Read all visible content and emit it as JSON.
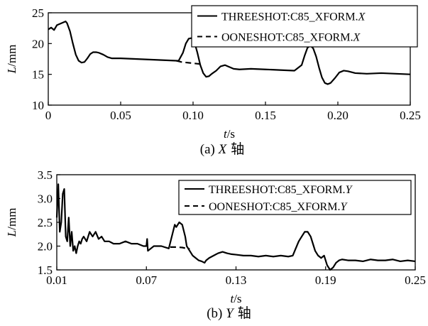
{
  "chart_data": [
    {
      "type": "line",
      "caption": "(a) X 轴",
      "caption_letter": "(a)",
      "caption_axis": "X",
      "caption_suffix": "轴",
      "xlabel": "t/s",
      "ylabel": "L/mm",
      "xlim": [
        0,
        0.25
      ],
      "ylim": [
        10,
        25
      ],
      "xticks": [
        0,
        0.05,
        0.1,
        0.15,
        0.2,
        0.25
      ],
      "xtick_labels": [
        "0",
        "0.05",
        "0.10",
        "0.15",
        "0.20",
        "0.25"
      ],
      "yticks": [
        10,
        15,
        20,
        25
      ],
      "ytick_labels": [
        "10",
        "15",
        "20",
        "25"
      ],
      "legend_position": "top-right",
      "series": [
        {
          "name": "THREESHOT:C85_XFORM.X",
          "name_prefix": "THREESHOT:C85_XFORM.",
          "name_axis": "X",
          "style": "solid",
          "x": [
            0,
            0.002,
            0.004,
            0.006,
            0.008,
            0.01,
            0.012,
            0.013,
            0.015,
            0.017,
            0.019,
            0.021,
            0.023,
            0.025,
            0.027,
            0.029,
            0.031,
            0.033,
            0.035,
            0.038,
            0.041,
            0.044,
            0.047,
            0.05,
            0.06,
            0.07,
            0.08,
            0.09,
            0.093,
            0.095,
            0.097,
            0.099,
            0.101,
            0.103,
            0.105,
            0.107,
            0.109,
            0.111,
            0.113,
            0.116,
            0.119,
            0.122,
            0.125,
            0.128,
            0.132,
            0.14,
            0.15,
            0.16,
            0.17,
            0.175,
            0.177,
            0.179,
            0.181,
            0.183,
            0.185,
            0.187,
            0.189,
            0.191,
            0.193,
            0.195,
            0.198,
            0.201,
            0.204,
            0.207,
            0.212,
            0.22,
            0.23,
            0.24,
            0.25
          ],
          "y": [
            22.3,
            22.6,
            22.2,
            23.0,
            23.2,
            23.4,
            23.6,
            23.3,
            22.0,
            20.0,
            18.2,
            17.2,
            16.9,
            17.0,
            17.6,
            18.3,
            18.6,
            18.6,
            18.5,
            18.2,
            17.8,
            17.6,
            17.6,
            17.6,
            17.5,
            17.4,
            17.3,
            17.2,
            18.5,
            20.0,
            20.8,
            20.9,
            20.2,
            18.5,
            16.5,
            15.2,
            14.6,
            14.7,
            15.1,
            15.6,
            16.3,
            16.5,
            16.2,
            15.9,
            15.8,
            15.9,
            15.8,
            15.7,
            15.6,
            16.5,
            18.0,
            19.3,
            19.7,
            19.2,
            17.9,
            16.1,
            14.5,
            13.6,
            13.4,
            13.6,
            14.4,
            15.3,
            15.6,
            15.5,
            15.2,
            15.1,
            15.2,
            15.1,
            15.0
          ]
        },
        {
          "name": "OONESHOT:C85_XFORM.X",
          "name_prefix": "OONESHOT:C85_XFORM.",
          "name_axis": "X",
          "style": "dashed",
          "x": [
            0.0885,
            0.092,
            0.096,
            0.1,
            0.104,
            0.107
          ],
          "y": [
            17.2,
            17.0,
            16.9,
            16.8,
            16.7,
            16.6
          ]
        }
      ]
    },
    {
      "type": "line",
      "caption": "(b) Y 轴",
      "caption_letter": "(b)",
      "caption_axis": "Y",
      "caption_suffix": "轴",
      "xlabel": "t/s",
      "ylabel": "L/mm",
      "xlim": [
        0.01,
        0.25
      ],
      "ylim": [
        1.5,
        3.5
      ],
      "xticks": [
        0.01,
        0.07,
        0.13,
        0.19,
        0.25
      ],
      "xtick_labels": [
        "0.01",
        "0.07",
        "0.13",
        "0.19",
        "0.25"
      ],
      "yticks": [
        1.5,
        2.0,
        2.5,
        3.0,
        3.5
      ],
      "ytick_labels": [
        "1.5",
        "2.0",
        "2.5",
        "3.0",
        "3.5"
      ],
      "legend_position": "top-right",
      "series": [
        {
          "name": "THREESHOT:C85_XFORM.Y",
          "name_prefix": "THREESHOT:C85_XFORM.",
          "name_axis": "Y",
          "style": "solid",
          "x": [
            0.01,
            0.011,
            0.012,
            0.013,
            0.014,
            0.015,
            0.016,
            0.017,
            0.018,
            0.019,
            0.02,
            0.021,
            0.022,
            0.023,
            0.024,
            0.025,
            0.026,
            0.027,
            0.028,
            0.03,
            0.032,
            0.034,
            0.036,
            0.038,
            0.04,
            0.042,
            0.045,
            0.048,
            0.052,
            0.056,
            0.06,
            0.064,
            0.068,
            0.07,
            0.0705,
            0.071,
            0.075,
            0.08,
            0.085,
            0.087,
            0.089,
            0.09,
            0.092,
            0.094,
            0.096,
            0.097,
            0.099,
            0.101,
            0.103,
            0.105,
            0.107,
            0.109,
            0.11,
            0.112,
            0.115,
            0.118,
            0.121,
            0.124,
            0.127,
            0.13,
            0.135,
            0.14,
            0.145,
            0.15,
            0.155,
            0.16,
            0.165,
            0.168,
            0.17,
            0.172,
            0.174,
            0.176,
            0.178,
            0.18,
            0.182,
            0.183,
            0.185,
            0.187,
            0.189,
            0.191,
            0.193,
            0.195,
            0.197,
            0.199,
            0.201,
            0.205,
            0.21,
            0.215,
            0.22,
            0.225,
            0.23,
            0.235,
            0.24,
            0.245,
            0.25
          ],
          "y": [
            2.6,
            3.3,
            2.3,
            2.5,
            3.1,
            3.2,
            2.2,
            2.1,
            2.6,
            2.0,
            2.3,
            1.9,
            2.0,
            1.85,
            2.0,
            2.1,
            2.05,
            2.15,
            2.2,
            2.1,
            2.3,
            2.2,
            2.3,
            2.15,
            2.2,
            2.1,
            2.1,
            2.05,
            2.05,
            2.1,
            2.05,
            2.05,
            2.0,
            2.0,
            2.15,
            1.9,
            2.0,
            2.0,
            1.95,
            2.2,
            2.45,
            2.4,
            2.5,
            2.45,
            2.2,
            2.0,
            1.9,
            1.8,
            1.75,
            1.7,
            1.68,
            1.65,
            1.7,
            1.75,
            1.8,
            1.85,
            1.88,
            1.85,
            1.83,
            1.82,
            1.8,
            1.8,
            1.78,
            1.8,
            1.78,
            1.8,
            1.78,
            1.8,
            1.95,
            2.1,
            2.2,
            2.3,
            2.3,
            2.2,
            2.0,
            1.9,
            1.8,
            1.75,
            1.8,
            1.6,
            1.5,
            1.55,
            1.65,
            1.7,
            1.72,
            1.7,
            1.7,
            1.68,
            1.72,
            1.7,
            1.7,
            1.72,
            1.68,
            1.7,
            1.68
          ]
        },
        {
          "name": "OONESHOT:C85_XFORM.Y",
          "name_prefix": "OONESHOT:C85_XFORM.",
          "name_axis": "Y",
          "style": "dashed",
          "x": [
            0.086,
            0.09,
            0.094,
            0.097,
            0.099
          ],
          "y": [
            1.98,
            1.98,
            1.97,
            1.95,
            1.94
          ]
        }
      ]
    }
  ]
}
